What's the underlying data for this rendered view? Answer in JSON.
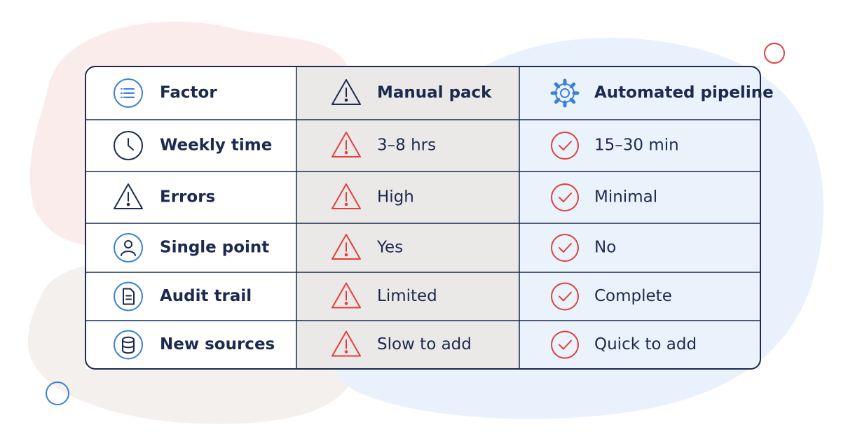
{
  "table": {
    "header": [
      "Factor",
      "Manual pack",
      "Automated pipeline"
    ],
    "rows": [
      [
        "Weekly time",
        "3–8 hrs",
        "15–30 min"
      ],
      [
        "Errors",
        "High",
        "Minimal"
      ],
      [
        "Single point",
        "Yes",
        "No"
      ],
      [
        "Audit trail",
        "Limited",
        "Complete"
      ],
      [
        "New sources",
        "Slow to add",
        "Quick to add"
      ]
    ]
  }
}
